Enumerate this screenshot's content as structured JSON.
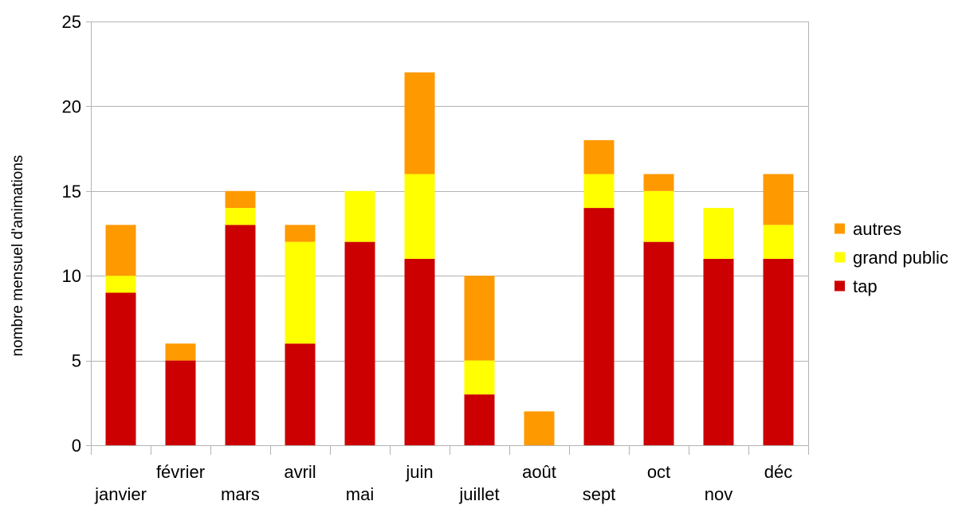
{
  "chart_data": {
    "type": "bar",
    "stacked": true,
    "categories": [
      "janvier",
      "février",
      "mars",
      "avril",
      "mai",
      "juin",
      "juillet",
      "août",
      "sept",
      "oct",
      "nov",
      "déc"
    ],
    "series": [
      {
        "name": "tap",
        "color": "#cc0000",
        "values": [
          9,
          5,
          13,
          6,
          12,
          11,
          3,
          0,
          14,
          12,
          11,
          11
        ]
      },
      {
        "name": "grand public",
        "color": "#ffff00",
        "values": [
          1,
          0,
          1,
          6,
          3,
          5,
          2,
          0,
          2,
          3,
          3,
          2
        ]
      },
      {
        "name": "autres",
        "color": "#ff9900",
        "values": [
          3,
          1,
          1,
          1,
          0,
          6,
          5,
          2,
          2,
          1,
          0,
          3
        ]
      }
    ],
    "title": "",
    "xlabel": "",
    "ylabel": "nombre mensuel d'animations",
    "ylim": [
      0,
      25
    ],
    "yticks": [
      0,
      5,
      10,
      15,
      20,
      25
    ],
    "grid": true,
    "legend_position": "right",
    "legend_order": [
      "autres",
      "grand public",
      "tap"
    ]
  }
}
